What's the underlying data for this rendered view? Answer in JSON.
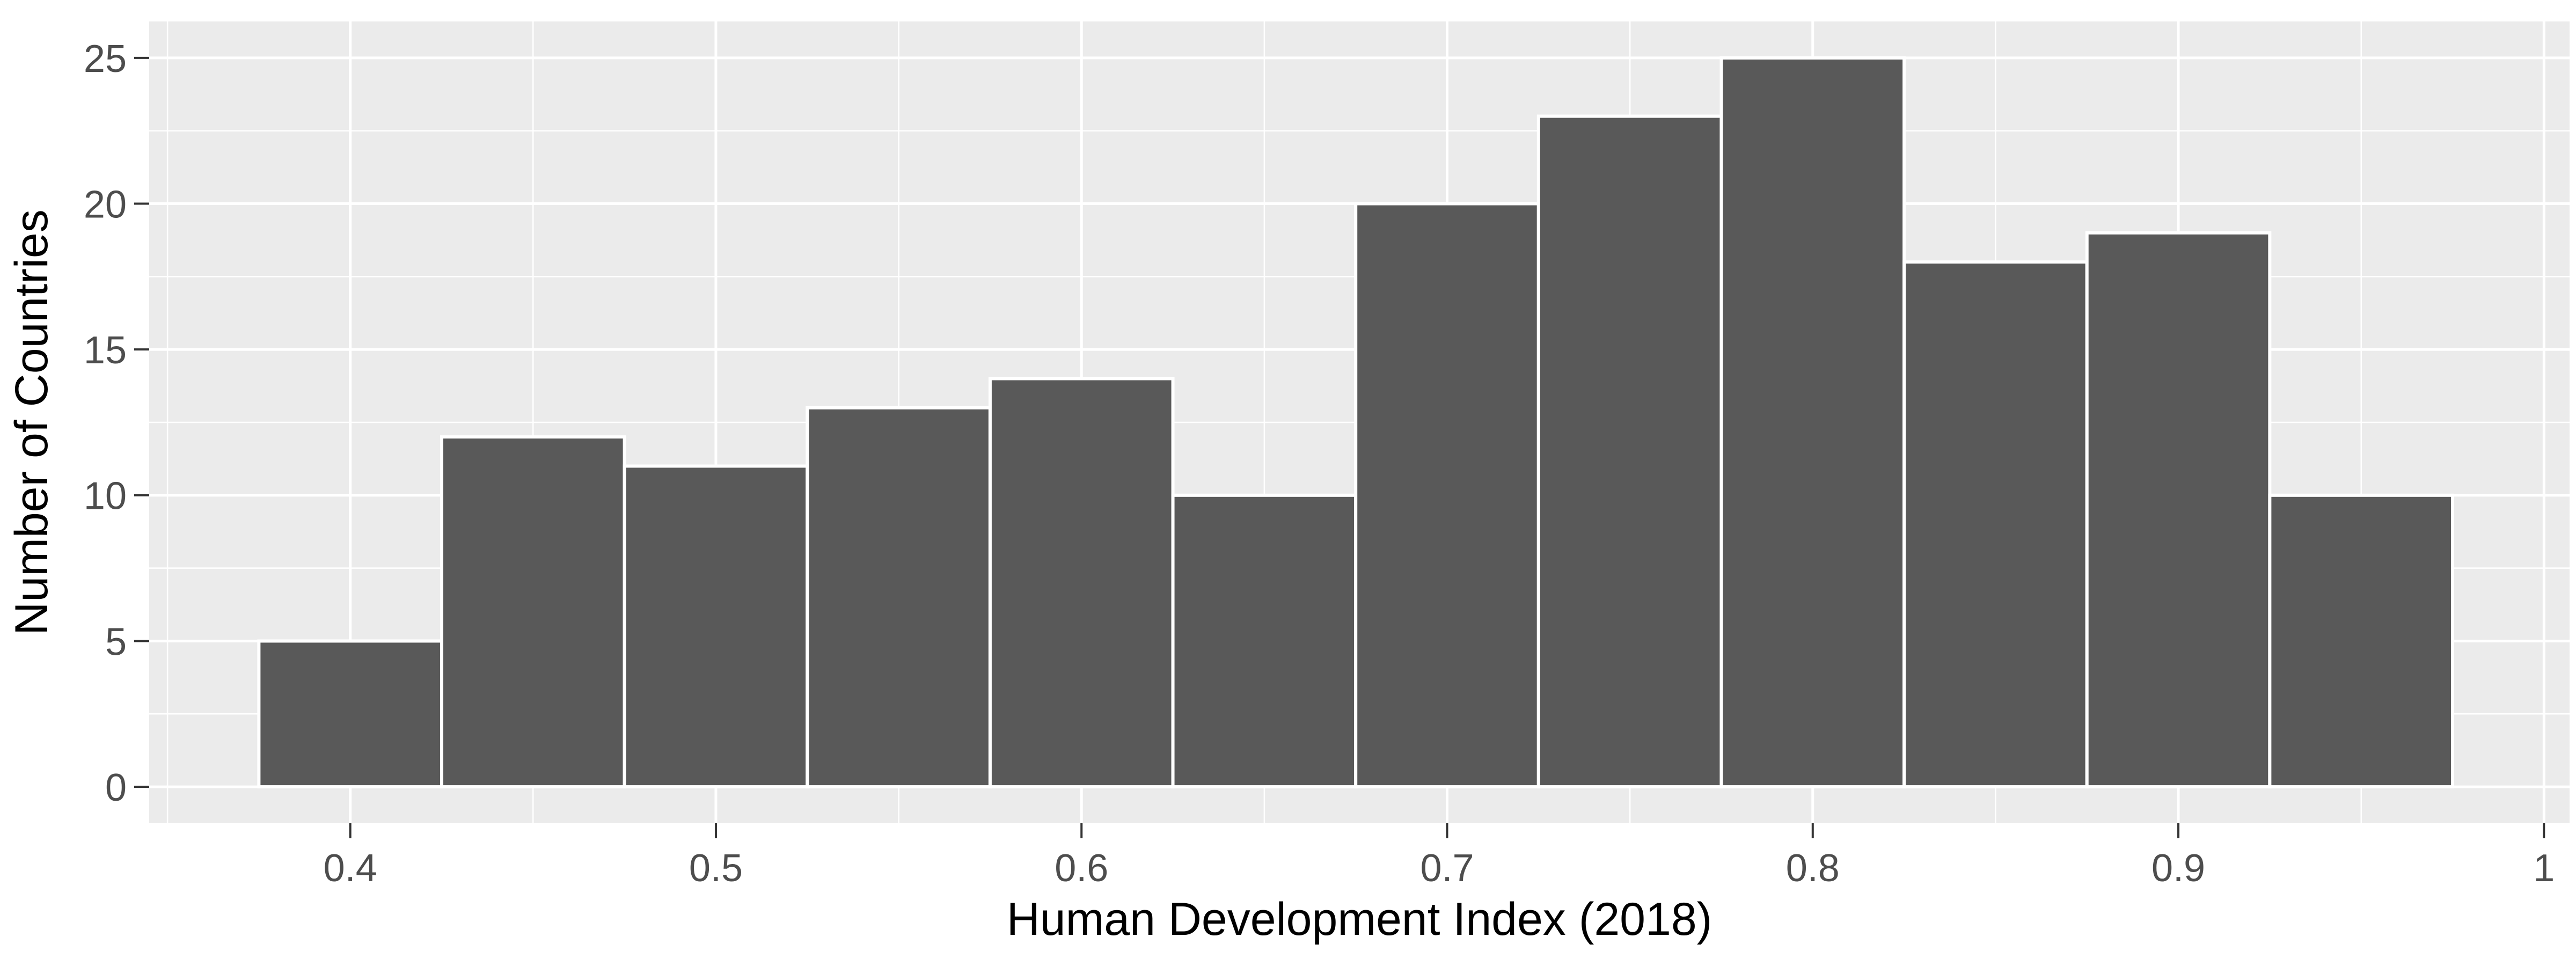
{
  "figure": {
    "background": "#FFFFFF",
    "panel_bg": "#EBEBEB",
    "grid_color": "#FFFFFF",
    "tick_mark_color": "#333333",
    "tick_label_color": "#4D4D4D",
    "axis_title_color": "#000000",
    "bar_fill": "#595959",
    "bar_stroke": "#FFFFFF"
  },
  "chart_data": {
    "type": "bar",
    "subtype": "histogram",
    "title": "",
    "xlabel": "Human Development Index (2018)",
    "ylabel": "Number of Countries",
    "bin_start": 0.375,
    "bin_width": 0.05,
    "categories": [
      "0.375-0.425",
      "0.425-0.475",
      "0.475-0.525",
      "0.525-0.575",
      "0.575-0.625",
      "0.625-0.675",
      "0.675-0.725",
      "0.725-0.775",
      "0.775-0.825",
      "0.825-0.875",
      "0.875-0.925",
      "0.925-0.975"
    ],
    "values": [
      5,
      12,
      11,
      13,
      14,
      10,
      20,
      23,
      25,
      18,
      19,
      10
    ],
    "x_ticks": [
      0.4,
      0.5,
      0.6,
      0.7,
      0.8,
      0.9,
      1.0
    ],
    "x_tick_labels": [
      "0.4",
      "0.5",
      "0.6",
      "0.7",
      "0.8",
      "0.9",
      "1"
    ],
    "x_minor_ticks": [
      0.35,
      0.45,
      0.55,
      0.65,
      0.75,
      0.85,
      0.95
    ],
    "y_ticks": [
      0,
      5,
      10,
      15,
      20,
      25
    ],
    "y_tick_labels": [
      "0",
      "5",
      "10",
      "15",
      "20",
      "25"
    ],
    "y_minor_ticks": [
      2.5,
      7.5,
      12.5,
      17.5,
      22.5
    ],
    "xlim": [
      0.345,
      1.007
    ],
    "ylim": [
      -1.25,
      26.25
    ],
    "grid": true,
    "legend_position": "none"
  }
}
